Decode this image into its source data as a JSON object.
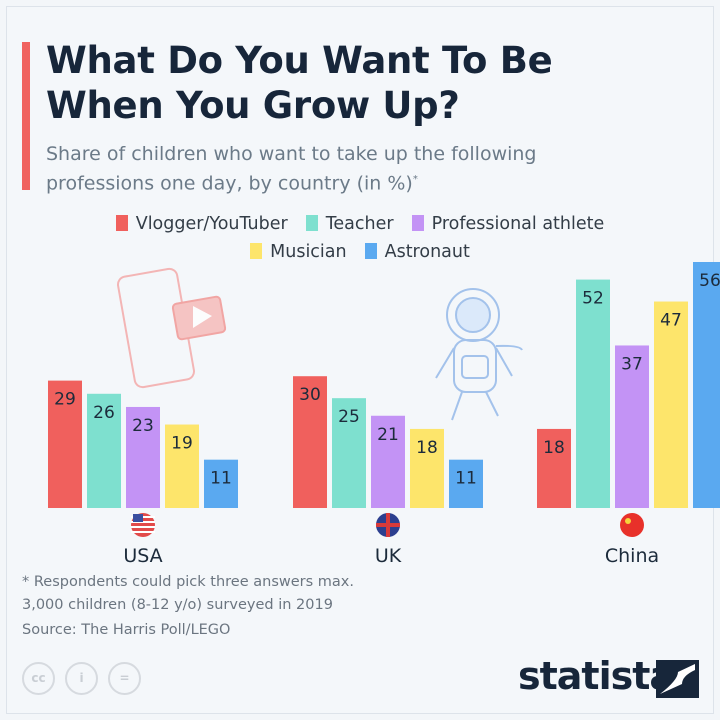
{
  "title": "What Do You Want To Be When You Grow Up?",
  "title_lines": [
    "What Do You Want To Be",
    "When You Grow Up?"
  ],
  "subtitle_lines": [
    "Share of children who want to take up the following",
    "professions one day, by country (in %)"
  ],
  "subtitle_mark": "*",
  "chart_data": {
    "type": "bar",
    "categories": [
      "USA",
      "UK",
      "China"
    ],
    "series": [
      {
        "name": "Vlogger/YouTuber",
        "color": "#f0605d",
        "values": [
          29,
          30,
          18
        ]
      },
      {
        "name": "Teacher",
        "color": "#7ee0cf",
        "values": [
          26,
          25,
          52
        ]
      },
      {
        "name": "Professional athlete",
        "color": "#c393f5",
        "values": [
          23,
          21,
          37
        ]
      },
      {
        "name": "Musician",
        "color": "#fde56b",
        "values": [
          19,
          18,
          47
        ]
      },
      {
        "name": "Astronaut",
        "color": "#5aa9f0",
        "values": [
          11,
          11,
          56
        ]
      }
    ],
    "ylim": [
      0,
      56
    ],
    "grid": false,
    "legend": "top",
    "data_labels": true
  },
  "footnotes": [
    "* Respondents could pick three answers max.",
    "3,000 children (8-12 y/o) surveyed in 2019",
    "Source: The Harris Poll/LEGO"
  ],
  "license_icons": [
    "cc",
    "by",
    "nd"
  ],
  "cc_labels": [
    "cc",
    "i",
    "="
  ],
  "brand": "statista"
}
